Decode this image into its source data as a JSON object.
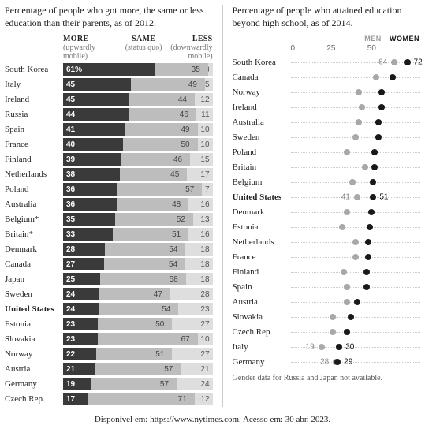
{
  "left": {
    "title": "Percentage of people who got more, the same or less education than their parents, as of 2012.",
    "headers": {
      "more": {
        "main": "MORE",
        "sub": "(upwardly mobile)"
      },
      "same": {
        "main": "SAME",
        "sub": "(status quo)"
      },
      "less": {
        "main": "LESS",
        "sub": "(downwardly mobile)"
      }
    },
    "colors": {
      "more": "#3a3a3a",
      "same": "#bdbdbd",
      "less": "#dedede"
    },
    "rows": [
      {
        "country": "South Korea",
        "more": 61,
        "more_label": "61%",
        "same": 35,
        "less": 3,
        "bold": false
      },
      {
        "country": "Italy",
        "more": 45,
        "same": 49,
        "less": 5
      },
      {
        "country": "Ireland",
        "more": 45,
        "same": 44,
        "less": 12
      },
      {
        "country": "Russia",
        "more": 44,
        "same": 46,
        "less": 11
      },
      {
        "country": "Spain",
        "more": 41,
        "same": 49,
        "less": 10
      },
      {
        "country": "France",
        "more": 40,
        "same": 50,
        "less": 10
      },
      {
        "country": "Finland",
        "more": 39,
        "same": 46,
        "less": 15
      },
      {
        "country": "Netherlands",
        "more": 38,
        "same": 45,
        "less": 17
      },
      {
        "country": "Poland",
        "more": 36,
        "same": 57,
        "less": 7
      },
      {
        "country": "Australia",
        "more": 36,
        "same": 48,
        "less": 16
      },
      {
        "country": "Belgium*",
        "more": 35,
        "same": 52,
        "less": 13
      },
      {
        "country": "Britain*",
        "more": 33,
        "same": 51,
        "less": 16
      },
      {
        "country": "Denmark",
        "more": 28,
        "same": 54,
        "less": 18
      },
      {
        "country": "Canada",
        "more": 27,
        "same": 54,
        "less": 18
      },
      {
        "country": "Japan",
        "more": 25,
        "same": 58,
        "less": 18
      },
      {
        "country": "Sweden",
        "more": 24,
        "same": 47,
        "less": 28
      },
      {
        "country": "United States",
        "more": 24,
        "same": 54,
        "less": 23,
        "bold": true
      },
      {
        "country": "Estonia",
        "more": 23,
        "same": 50,
        "less": 27
      },
      {
        "country": "Slovakia",
        "more": 23,
        "same": 67,
        "less": 10
      },
      {
        "country": "Norway",
        "more": 22,
        "same": 51,
        "less": 27
      },
      {
        "country": "Austria",
        "more": 21,
        "same": 57,
        "less": 21
      },
      {
        "country": "Germany",
        "more": 19,
        "same": 57,
        "less": 24
      },
      {
        "country": "Czech Rep.",
        "more": 17,
        "same": 71,
        "less": 12
      }
    ]
  },
  "right": {
    "title": "Percentage of people who attained education beyond high school, as of 2014.",
    "legend": {
      "men": "MEN",
      "women": "WOMEN"
    },
    "colors": {
      "men": "#a8a8a8",
      "women": "#191919",
      "dotline": "#cccccc"
    },
    "axis": {
      "min": 0,
      "max": 80,
      "ticks": [
        0,
        25,
        50
      ]
    },
    "rows": [
      {
        "country": "South Korea",
        "men": 64,
        "women": 72,
        "label_men": "64",
        "label_women": "72"
      },
      {
        "country": "Canada",
        "men": 53,
        "women": 63
      },
      {
        "country": "Norway",
        "men": 42,
        "women": 56
      },
      {
        "country": "Ireland",
        "men": 44,
        "women": 56
      },
      {
        "country": "Australia",
        "men": 42,
        "women": 54
      },
      {
        "country": "Sweden",
        "men": 40,
        "women": 54
      },
      {
        "country": "Poland",
        "men": 35,
        "women": 52
      },
      {
        "country": "Britain",
        "men": 46,
        "women": 52
      },
      {
        "country": "Belgium",
        "men": 38,
        "women": 51
      },
      {
        "country": "United States",
        "men": 41,
        "women": 51,
        "label_men": "41",
        "label_women": "51",
        "bold": true
      },
      {
        "country": "Denmark",
        "men": 35,
        "women": 50
      },
      {
        "country": "Estonia",
        "men": 32,
        "women": 49
      },
      {
        "country": "Netherlands",
        "men": 40,
        "women": 48
      },
      {
        "country": "France",
        "men": 40,
        "women": 48
      },
      {
        "country": "Finland",
        "men": 33,
        "women": 47
      },
      {
        "country": "Spain",
        "men": 35,
        "women": 47
      },
      {
        "country": "Austria",
        "men": 35,
        "women": 41
      },
      {
        "country": "Slovakia",
        "men": 26,
        "women": 37
      },
      {
        "country": "Czech Rep.",
        "men": 26,
        "women": 35
      },
      {
        "country": "Italy",
        "men": 19,
        "women": 30,
        "label_men": "19",
        "label_women": "30"
      },
      {
        "country": "Germany",
        "men": 28,
        "women": 29,
        "label_men": "28",
        "label_women": "29"
      }
    ],
    "footnote": "Gender data for Russia and Japan not available."
  },
  "source": "Disponível em: https://www.nytimes.com. Acesso em: 30 abr. 2023."
}
